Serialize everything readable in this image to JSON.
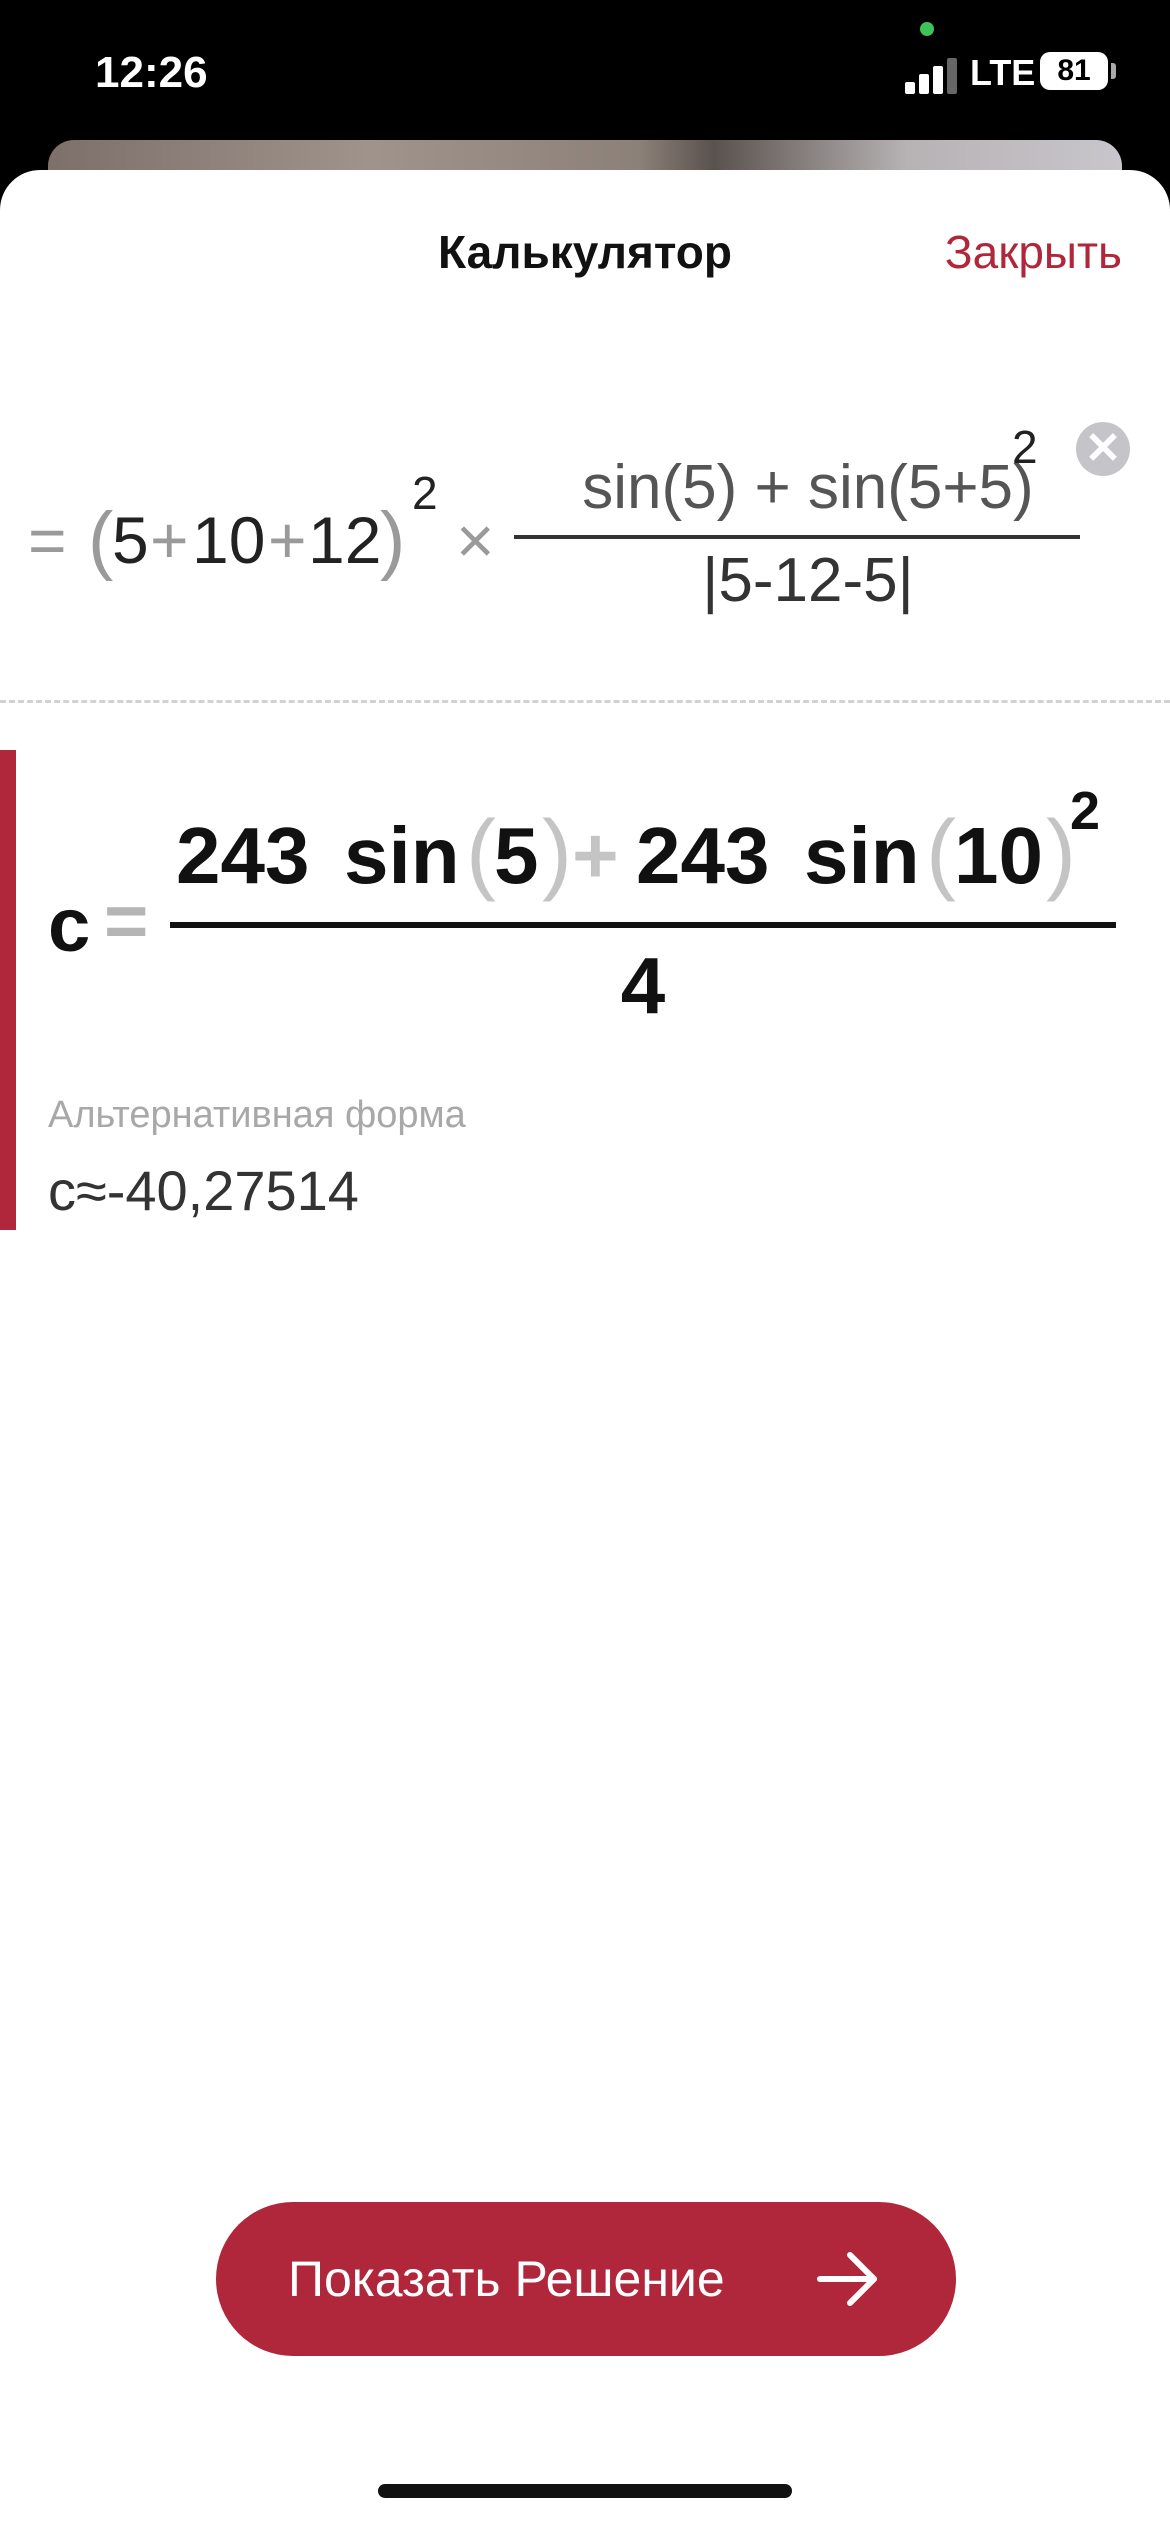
{
  "status_bar": {
    "time": "12:26",
    "network": "LTE",
    "battery": "81"
  },
  "sheet": {
    "title": "Калькулятор",
    "close_label": "Закрыть"
  },
  "input": {
    "lead": "=",
    "base_open": "(",
    "base_terms": [
      "5",
      "+",
      "10",
      "+",
      "12"
    ],
    "base_close": ")",
    "exponent": "2",
    "times": "×",
    "numerator": "sin(5) + sin(5+5)",
    "numerator_exponent": "2",
    "denominator": "|5-12-5|"
  },
  "result": {
    "variable": "c",
    "equals": "=",
    "numerator_a_coef": "243",
    "numerator_a_fn": "sin",
    "numerator_a_arg": "5",
    "plus": "+",
    "numerator_b_coef": "243",
    "numerator_b_fn": "sin",
    "numerator_b_arg": "10",
    "exponent": "2",
    "denominator": "4"
  },
  "alternative": {
    "label": "Альтернативная форма",
    "value": "c≈-40,27514"
  },
  "solve_button": {
    "label": "Показать Решение",
    "icon": "arrow-right-icon"
  },
  "colors": {
    "accent": "#b0263a",
    "muted": "#9a9a9a"
  }
}
